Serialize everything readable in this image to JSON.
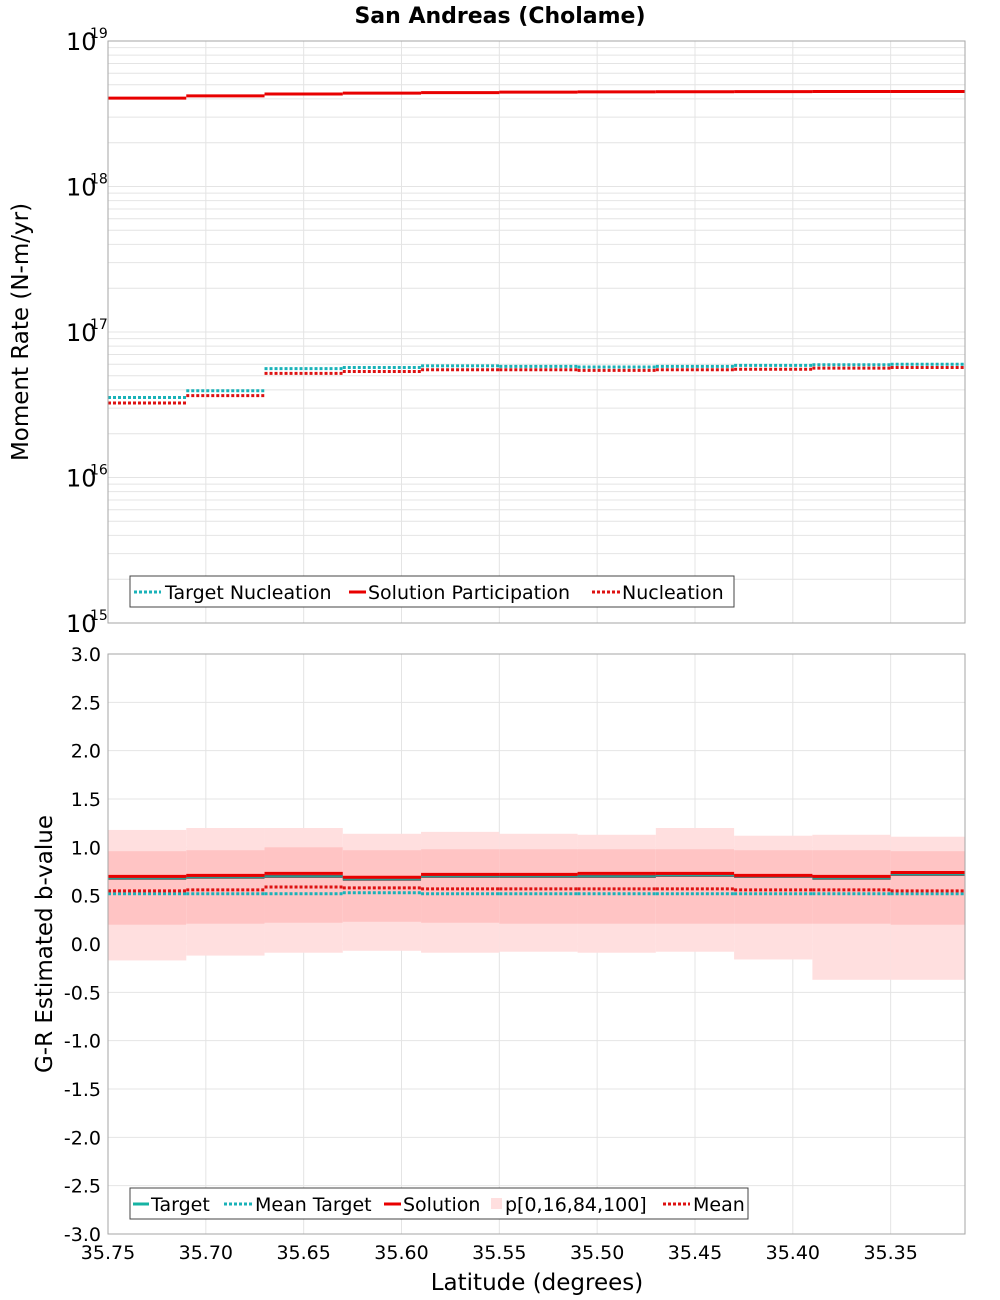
{
  "colors": {
    "target": "#16b3a3",
    "target_dark": "#555f5f",
    "mean_target": "#19b2b8",
    "solution": "#e80000",
    "nucleation": "#dd1111",
    "band_outer": "#ffdfdf",
    "band_inner": "#ffc4c4",
    "grid": "#e4e4e4",
    "frame": "#a6a6a6"
  },
  "chart_data": [
    {
      "type": "line",
      "title": "San Andreas (Cholame)",
      "xlabel": "",
      "ylabel": "Moment Rate (N-m/yr)",
      "yscale": "log",
      "ylim": [
        1000000000000000.0,
        1e+19
      ],
      "xlim": [
        35.75,
        35.312
      ],
      "y_tick_labels": [
        {
          "base": "10",
          "exp": "15",
          "value": 1000000000000000.0
        },
        {
          "base": "10",
          "exp": "16",
          "value": 1e+16
        },
        {
          "base": "10",
          "exp": "17",
          "value": 1e+17
        },
        {
          "base": "10",
          "exp": "18",
          "value": 1e+18
        },
        {
          "base": "10",
          "exp": "19",
          "value": 1e+19
        }
      ],
      "bin_edges": [
        35.75,
        35.71,
        35.67,
        35.63,
        35.59,
        35.55,
        35.51,
        35.47,
        35.43,
        35.39,
        35.35,
        35.312
      ],
      "series": [
        {
          "name": "Target Nucleation",
          "style": "dotted",
          "color": "#19b2b8",
          "values": [
            3.55e+16,
            3.95e+16,
            5.6e+16,
            5.7e+16,
            5.85e+16,
            5.8e+16,
            5.75e+16,
            5.8e+16,
            5.9e+16,
            5.95e+16,
            6e+16
          ]
        },
        {
          "name": "Solution Participation",
          "style": "solid",
          "color": "#e80000",
          "values": [
            4.05e+18,
            4.2e+18,
            4.32e+18,
            4.38e+18,
            4.42e+18,
            4.45e+18,
            4.47e+18,
            4.48e+18,
            4.49e+18,
            4.5e+18,
            4.5e+18
          ]
        },
        {
          "name": "Nucleation",
          "style": "dotted",
          "color": "#dd1111",
          "values": [
            3.25e+16,
            3.65e+16,
            5.2e+16,
            5.35e+16,
            5.5e+16,
            5.5e+16,
            5.45e+16,
            5.5e+16,
            5.55e+16,
            5.65e+16,
            5.7e+16
          ]
        }
      ]
    },
    {
      "type": "line",
      "title": "",
      "xlabel": "Latitude (degrees)",
      "ylabel": "G-R Estimated b-value",
      "ylim": [
        -3.0,
        3.0
      ],
      "xlim": [
        35.75,
        35.312
      ],
      "y_ticks": [
        3.0,
        2.5,
        2.0,
        1.5,
        1.0,
        0.5,
        0.0,
        -0.5,
        -1.0,
        -1.5,
        -2.0,
        -2.5,
        -3.0
      ],
      "y_tick_labels": [
        "3.0",
        "2.5",
        "2.0",
        "1.5",
        "1.0",
        "0.5",
        "0.0",
        "-0.5",
        "-1.0",
        "-1.5",
        "-2.0",
        "-2.5",
        "-3.0"
      ],
      "x_ticks": [
        35.75,
        35.7,
        35.65,
        35.6,
        35.55,
        35.5,
        35.45,
        35.4,
        35.35
      ],
      "x_tick_labels": [
        "35.75",
        "35.70",
        "35.65",
        "35.60",
        "35.55",
        "35.50",
        "35.45",
        "35.40",
        "35.35"
      ],
      "bin_edges": [
        35.75,
        35.71,
        35.67,
        35.63,
        35.59,
        35.55,
        35.51,
        35.47,
        35.43,
        35.39,
        35.35,
        35.312
      ],
      "bands": {
        "p0": [
          -0.17,
          -0.12,
          -0.09,
          -0.07,
          -0.09,
          -0.08,
          -0.09,
          -0.08,
          -0.16,
          -0.37,
          -0.37
        ],
        "p16": [
          0.2,
          0.21,
          0.22,
          0.23,
          0.22,
          0.21,
          0.21,
          0.21,
          0.21,
          0.21,
          0.2
        ],
        "p84": [
          0.96,
          0.97,
          1.0,
          0.97,
          0.98,
          0.98,
          0.98,
          0.98,
          0.97,
          0.97,
          0.96
        ],
        "p100": [
          1.18,
          1.2,
          1.2,
          1.14,
          1.16,
          1.14,
          1.13,
          1.2,
          1.12,
          1.13,
          1.11
        ]
      },
      "series": [
        {
          "name": "Target",
          "style": "solid",
          "color": "#16b3a3",
          "values": [
            0.68,
            0.69,
            0.7,
            0.67,
            0.7,
            0.7,
            0.7,
            0.71,
            0.7,
            0.68,
            0.72
          ]
        },
        {
          "name": "Mean Target",
          "style": "dotted",
          "color": "#19b2b8",
          "values": [
            0.52,
            0.52,
            0.52,
            0.53,
            0.52,
            0.52,
            0.52,
            0.52,
            0.52,
            0.52,
            0.52
          ]
        },
        {
          "name": "Solution",
          "style": "solid",
          "color": "#e80000",
          "values": [
            0.7,
            0.71,
            0.73,
            0.69,
            0.72,
            0.72,
            0.73,
            0.73,
            0.71,
            0.7,
            0.74
          ]
        },
        {
          "name": "p[0,16,84,100]",
          "style": "band",
          "color": "#ffc4c4",
          "values": []
        },
        {
          "name": "Mean",
          "style": "dotted",
          "color": "#dd1111",
          "values": [
            0.55,
            0.56,
            0.59,
            0.58,
            0.57,
            0.57,
            0.57,
            0.57,
            0.56,
            0.56,
            0.55
          ]
        }
      ]
    }
  ]
}
